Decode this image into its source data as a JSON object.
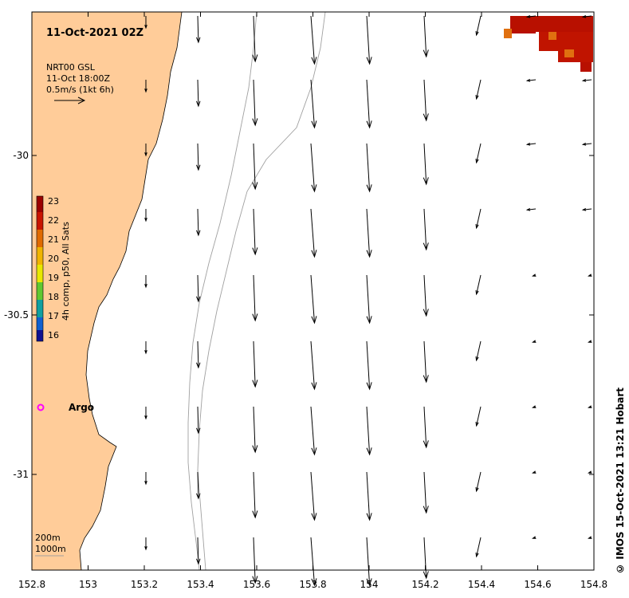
{
  "title": "11-Oct-2021 02Z",
  "product": {
    "line1": "NRT00 GSL",
    "line2": "11-Oct 18:00Z",
    "line3": "0.5m/s (1kt 6h)"
  },
  "colorbar": {
    "label": "4h comp, p50, All Sats",
    "ticks": [
      "23",
      "22",
      "21",
      "20",
      "19",
      "18",
      "17",
      "16"
    ],
    "colors": [
      "#9b0000",
      "#c81400",
      "#e06a00",
      "#f0b400",
      "#e8e800",
      "#60c830",
      "#10a0a0",
      "#1060d0",
      "#101090"
    ]
  },
  "argo": {
    "label": "Argo",
    "color": "#ff00ff"
  },
  "isobaths": [
    "200m",
    "1000m"
  ],
  "credit": "© IMOS 15-Oct-2021 13:21 Hobart",
  "axes": {
    "x_ticks": [
      "152.8",
      "153",
      "153.2",
      "153.4",
      "153.6",
      "153.8",
      "154",
      "154.2",
      "154.4",
      "154.6",
      "154.8"
    ],
    "x_values": [
      152.8,
      153.0,
      153.2,
      153.4,
      153.6,
      153.8,
      154.0,
      154.2,
      154.4,
      154.6,
      154.8
    ],
    "y_ticks": [
      "-30",
      "-30.5",
      "-31"
    ],
    "y_values": [
      -30.0,
      -30.5,
      -31.0
    ],
    "lon_range": [
      152.8,
      154.8
    ],
    "lat_range": [
      -29.55,
      -31.3
    ]
  },
  "colors": {
    "land": "#ffcc99",
    "sst_hot": "#b81000",
    "sst_warm": "#e07010",
    "isobath": "#a0a0a0"
  }
}
